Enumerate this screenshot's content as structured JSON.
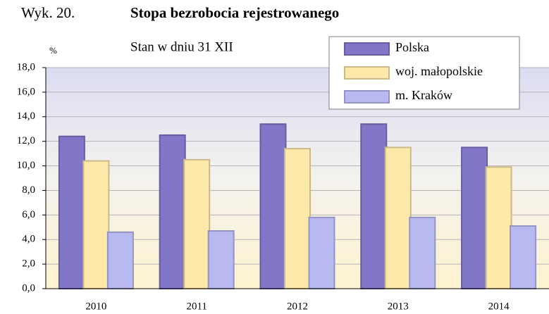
{
  "chart_data": {
    "type": "bar",
    "label": "Wyk. 20.",
    "title": "Stopa bezrobocia rejestrowanego",
    "subtitle": "Stan w dniu 31 XII",
    "y_unit": "%",
    "categories": [
      "2010",
      "2011",
      "2012",
      "2013",
      "2014"
    ],
    "series": [
      {
        "name": "Polska",
        "color": "#8176c8",
        "values": [
          12.4,
          12.5,
          13.4,
          13.4,
          11.5
        ]
      },
      {
        "name": "woj. małopolskie",
        "color": "#fde9a9",
        "values": [
          10.4,
          10.5,
          11.4,
          11.5,
          9.9
        ]
      },
      {
        "name": "m. Kraków",
        "color": "#b9b9f2",
        "values": [
          4.6,
          4.7,
          5.8,
          5.8,
          5.1
        ]
      }
    ],
    "ylim": [
      0,
      18
    ],
    "yticks": [
      {
        "value": 0,
        "label": "0,0"
      },
      {
        "value": 2,
        "label": "2,0"
      },
      {
        "value": 4,
        "label": "4,0"
      },
      {
        "value": 6,
        "label": "6,0"
      },
      {
        "value": 8,
        "label": "8,0"
      },
      {
        "value": 10,
        "label": "10,0"
      },
      {
        "value": 12,
        "label": "12,0"
      },
      {
        "value": 14,
        "label": "14,0"
      },
      {
        "value": 16,
        "label": "16,0"
      },
      {
        "value": 18,
        "label": "18,0"
      }
    ],
    "grid": true,
    "legend": "top-right"
  }
}
